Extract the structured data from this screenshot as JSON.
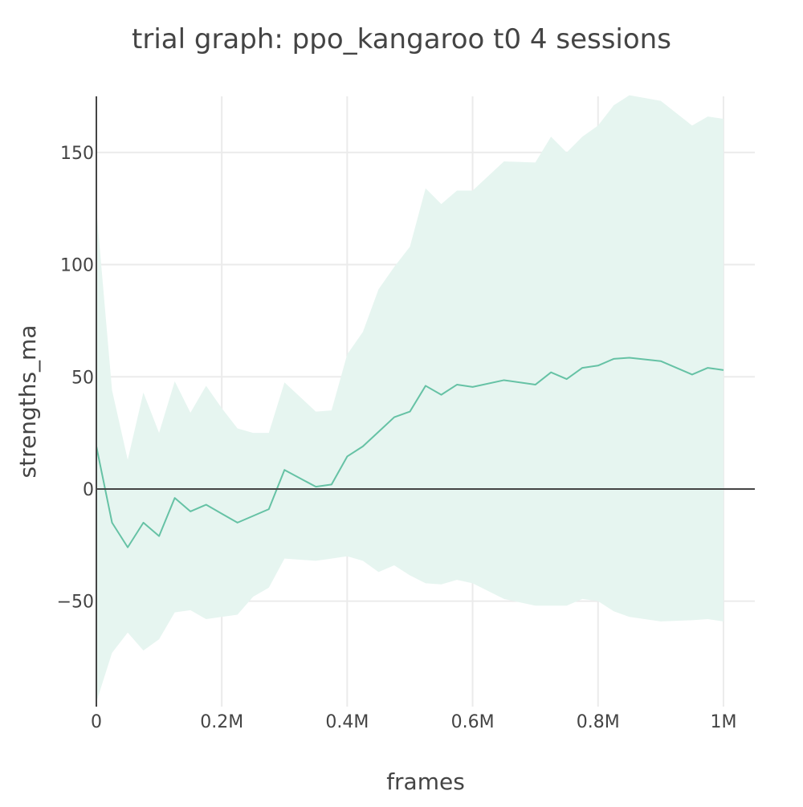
{
  "chart_data": {
    "type": "line",
    "title": "trial graph: ppo_kangaroo t0 4 sessions",
    "xlabel": "frames",
    "ylabel": "strengths_ma",
    "xlim": [
      0,
      1050000
    ],
    "ylim": [
      -97,
      175
    ],
    "x_ticks": [
      {
        "value": 0,
        "label": "0"
      },
      {
        "value": 200000,
        "label": "0.2M"
      },
      {
        "value": 400000,
        "label": "0.4M"
      },
      {
        "value": 600000,
        "label": "0.6M"
      },
      {
        "value": 800000,
        "label": "0.8M"
      },
      {
        "value": 1000000,
        "label": "1M"
      }
    ],
    "y_ticks": [
      {
        "value": -50,
        "label": "−50"
      },
      {
        "value": 0,
        "label": "0"
      },
      {
        "value": 50,
        "label": "50"
      },
      {
        "value": 100,
        "label": "100"
      },
      {
        "value": 150,
        "label": "150"
      }
    ],
    "grid": true,
    "zero_line": true,
    "colors": {
      "line": "#66c2a5",
      "band": "#e6f5f0",
      "grid": "#ebebeb",
      "axis": "#444444"
    },
    "x": [
      0,
      25000,
      50000,
      75000,
      100000,
      125000,
      150000,
      175000,
      200000,
      225000,
      250000,
      275000,
      300000,
      350000,
      375000,
      400000,
      425000,
      450000,
      475000,
      500000,
      525000,
      550000,
      575000,
      600000,
      650000,
      700000,
      725000,
      750000,
      775000,
      800000,
      825000,
      850000,
      900000,
      950000,
      975000,
      1000000
    ],
    "series": [
      {
        "values": [
          19,
          -15,
          -26,
          -15,
          -21,
          -4,
          -10,
          -7,
          -11,
          -15,
          -12,
          -9,
          8.5,
          1,
          2,
          14.5,
          19,
          25.5,
          32,
          34.5,
          46,
          42,
          46.5,
          45.5,
          48.5,
          46.5,
          52,
          49,
          54,
          55,
          58,
          58.5,
          57,
          51,
          54,
          53
        ],
        "upper": [
          125,
          44,
          13,
          43,
          25,
          48,
          34,
          46,
          36,
          27,
          25,
          25,
          47.5,
          34.5,
          35,
          60,
          70,
          89,
          99,
          108,
          134,
          127,
          133,
          133,
          146,
          145.5,
          157,
          150,
          157,
          162,
          171,
          175.5,
          173,
          162,
          166,
          165
        ],
        "lower": [
          -95,
          -73,
          -64,
          -72,
          -67,
          -55,
          -54,
          -58,
          -57,
          -56,
          -48,
          -44,
          -31,
          -32,
          -31,
          -30,
          -32,
          -37,
          -34,
          -38.5,
          -42,
          -42.5,
          -40.5,
          -42,
          -49,
          -52,
          -52,
          -52,
          -49,
          -50,
          -54.5,
          -57,
          -59,
          -58.5,
          -58,
          -59
        ]
      }
    ]
  }
}
